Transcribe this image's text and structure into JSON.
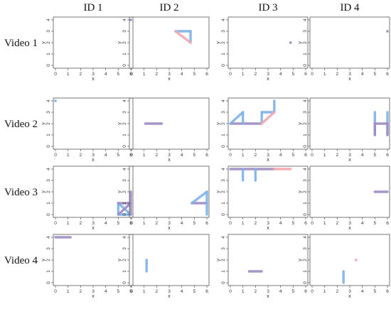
{
  "chart_data": {
    "type": "line",
    "layout": "grid",
    "columns": [
      "ID 1",
      "ID 2",
      "ID 3",
      "ID 4"
    ],
    "rows": [
      "Video 1",
      "Video 2",
      "Video 3",
      "Video 4"
    ],
    "xlabel": "x",
    "ylabel": "y",
    "xlim": [
      0,
      6
    ],
    "ylim": [
      0,
      4
    ],
    "xticks": [
      0,
      1,
      2,
      3,
      4,
      5,
      6
    ],
    "yticks": [
      0,
      1,
      2,
      3,
      4
    ],
    "colors": {
      "blue": "#7fb3e8",
      "pink": "#f4a7ae",
      "purple": "#a08cc2"
    },
    "panels": [
      {
        "row": 0,
        "col": 0,
        "segments": [],
        "points": [
          {
            "x": 6,
            "y": 4,
            "color": "purple"
          }
        ]
      },
      {
        "row": 0,
        "col": 1,
        "segments": [
          {
            "x": [
              3.5,
              4.7
            ],
            "y": [
              3,
              3
            ],
            "color": "blue"
          },
          {
            "x": [
              4.7,
              4.7
            ],
            "y": [
              3,
              2
            ],
            "color": "blue"
          },
          {
            "x": [
              3.5,
              4.7
            ],
            "y": [
              3,
              2
            ],
            "color": "pink"
          }
        ],
        "points": []
      },
      {
        "row": 0,
        "col": 2,
        "segments": [],
        "points": [
          {
            "x": 4.8,
            "y": 2,
            "color": "purple"
          }
        ]
      },
      {
        "row": 0,
        "col": 3,
        "segments": [],
        "points": [
          {
            "x": 6,
            "y": 3,
            "color": "purple"
          }
        ]
      },
      {
        "row": 1,
        "col": 0,
        "segments": [],
        "points": [
          {
            "x": 0,
            "y": 4,
            "color": "blue"
          }
        ]
      },
      {
        "row": 1,
        "col": 1,
        "segments": [
          {
            "x": [
              1.1,
              2.4
            ],
            "y": [
              2,
              2
            ],
            "color": "purple"
          }
        ],
        "points": []
      },
      {
        "row": 1,
        "col": 2,
        "segments": [
          {
            "x": [
              0,
              2.5
            ],
            "y": [
              2,
              2
            ],
            "color": "purple"
          },
          {
            "x": [
              0,
              1
            ],
            "y": [
              2,
              3
            ],
            "color": "blue"
          },
          {
            "x": [
              1,
              1
            ],
            "y": [
              3,
              2
            ],
            "color": "blue"
          },
          {
            "x": [
              2.5,
              2.5
            ],
            "y": [
              2,
              3
            ],
            "color": "blue"
          },
          {
            "x": [
              2.5,
              3.5
            ],
            "y": [
              3,
              3
            ],
            "color": "blue"
          },
          {
            "x": [
              3.5,
              3.5
            ],
            "y": [
              3,
              4
            ],
            "color": "blue"
          },
          {
            "x": [
              2.5,
              3.5
            ],
            "y": [
              2,
              3
            ],
            "color": "pink"
          }
        ],
        "points": []
      },
      {
        "row": 1,
        "col": 3,
        "segments": [
          {
            "x": [
              5,
              5
            ],
            "y": [
              3,
              1
            ],
            "color": "blue"
          },
          {
            "x": [
              6,
              6
            ],
            "y": [
              3,
              1
            ],
            "color": "blue"
          },
          {
            "x": [
              5,
              5
            ],
            "y": [
              2,
              1
            ],
            "color": "purple"
          },
          {
            "x": [
              6,
              6
            ],
            "y": [
              2,
              1
            ],
            "color": "purple"
          },
          {
            "x": [
              5,
              6
            ],
            "y": [
              2,
              2
            ],
            "color": "purple"
          }
        ],
        "points": []
      },
      {
        "row": 2,
        "col": 0,
        "segments": [
          {
            "x": [
              5,
              5
            ],
            "y": [
              0,
              1
            ],
            "color": "blue"
          },
          {
            "x": [
              5,
              6
            ],
            "y": [
              0,
              0
            ],
            "color": "blue"
          },
          {
            "x": [
              5,
              6
            ],
            "y": [
              1,
              0
            ],
            "color": "blue"
          },
          {
            "x": [
              5,
              6
            ],
            "y": [
              1,
              1
            ],
            "color": "purple"
          },
          {
            "x": [
              5,
              6
            ],
            "y": [
              0,
              1
            ],
            "color": "purple"
          },
          {
            "x": [
              6,
              6
            ],
            "y": [
              0,
              2
            ],
            "color": "purple"
          }
        ],
        "points": []
      },
      {
        "row": 2,
        "col": 1,
        "segments": [
          {
            "x": [
              4.8,
              6
            ],
            "y": [
              1,
              1
            ],
            "color": "purple"
          },
          {
            "x": [
              4.8,
              6
            ],
            "y": [
              1,
              2
            ],
            "color": "blue"
          },
          {
            "x": [
              6,
              6
            ],
            "y": [
              2,
              0
            ],
            "color": "blue"
          }
        ],
        "points": []
      },
      {
        "row": 2,
        "col": 2,
        "segments": [
          {
            "x": [
              0,
              3.5
            ],
            "y": [
              4,
              4
            ],
            "color": "purple"
          },
          {
            "x": [
              3.5,
              4.8
            ],
            "y": [
              4,
              4
            ],
            "color": "pink"
          },
          {
            "x": [
              1,
              1
            ],
            "y": [
              4,
              3
            ],
            "color": "blue"
          },
          {
            "x": [
              2,
              2
            ],
            "y": [
              4,
              3
            ],
            "color": "blue"
          }
        ],
        "points": []
      },
      {
        "row": 2,
        "col": 3,
        "segments": [
          {
            "x": [
              5,
              6
            ],
            "y": [
              2,
              2
            ],
            "color": "purple"
          }
        ],
        "points": []
      },
      {
        "row": 3,
        "col": 0,
        "segments": [
          {
            "x": [
              0,
              1.2
            ],
            "y": [
              4,
              4
            ],
            "color": "purple"
          }
        ],
        "points": []
      },
      {
        "row": 3,
        "col": 1,
        "segments": [
          {
            "x": [
              1.2,
              1.2
            ],
            "y": [
              1,
              2
            ],
            "color": "blue"
          }
        ],
        "points": []
      },
      {
        "row": 3,
        "col": 2,
        "segments": [
          {
            "x": [
              1.5,
              2.5
            ],
            "y": [
              1,
              1
            ],
            "color": "purple"
          }
        ],
        "points": []
      },
      {
        "row": 3,
        "col": 3,
        "segments": [
          {
            "x": [
              2.5,
              2.5
            ],
            "y": [
              0,
              1
            ],
            "color": "blue"
          }
        ],
        "points": [
          {
            "x": 3.5,
            "y": 2,
            "color": "pink"
          }
        ]
      }
    ]
  }
}
